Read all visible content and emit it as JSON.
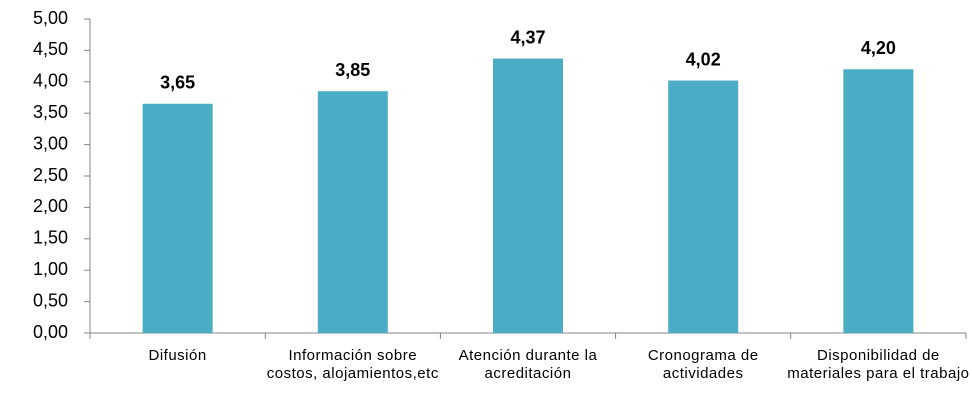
{
  "chart_data": {
    "type": "bar",
    "categories": [
      "Difusión",
      "Información sobre costos, alojamientos,etc",
      "Atención durante la acreditación",
      "Cronograma de actividades",
      "Disponibilidad de materiales para el trabajo"
    ],
    "values": [
      3.65,
      3.85,
      4.37,
      4.02,
      4.2
    ],
    "value_labels": [
      "3,65",
      "3,85",
      "4,37",
      "4,02",
      "4,20"
    ],
    "color": "#4bacc6",
    "ylim": [
      0,
      5
    ],
    "yticks": [
      {
        "value": 0,
        "label": "0,00"
      },
      {
        "value": 0.5,
        "label": "0,50"
      },
      {
        "value": 1,
        "label": "1,00"
      },
      {
        "value": 1.5,
        "label": "1,50"
      },
      {
        "value": 2,
        "label": "2,00"
      },
      {
        "value": 2.5,
        "label": "2,50"
      },
      {
        "value": 3,
        "label": "3,00"
      },
      {
        "value": 3.5,
        "label": "3,50"
      },
      {
        "value": 4,
        "label": "4,00"
      },
      {
        "value": 4.5,
        "label": "4,50"
      },
      {
        "value": 5,
        "label": "5,00"
      }
    ],
    "grid": false
  }
}
